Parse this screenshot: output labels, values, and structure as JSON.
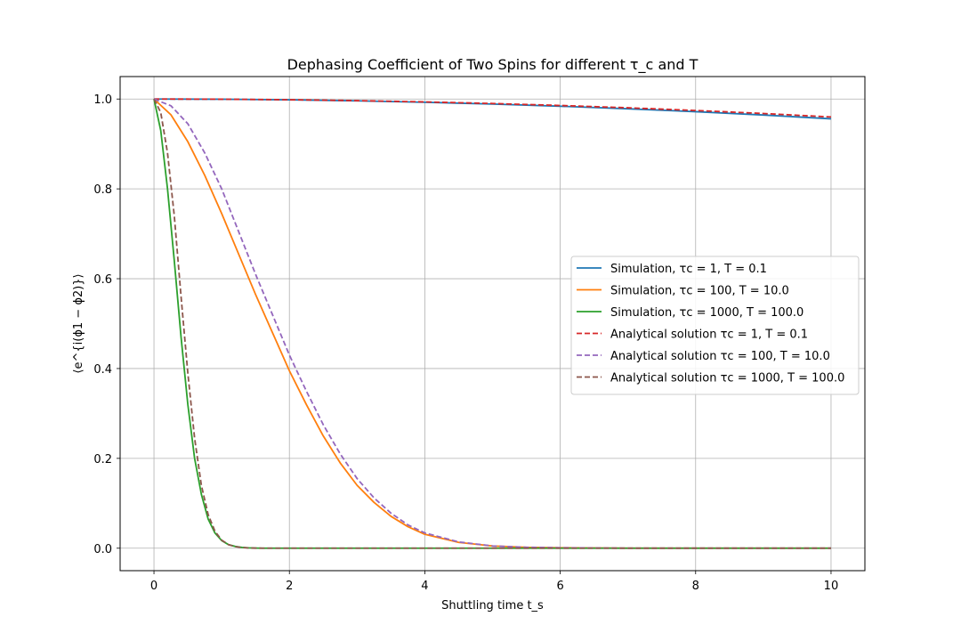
{
  "chart_data": {
    "type": "line",
    "title": "Dephasing Coefficient of Two Spins for different τ_c and T",
    "xlabel": "Shuttling time t_s",
    "ylabel": "⟨e^{i(ϕ1 − ϕ2)}⟩",
    "xlim": [
      -0.5,
      10.5
    ],
    "ylim": [
      -0.05,
      1.05
    ],
    "xticks": [
      0,
      2,
      4,
      6,
      8,
      10
    ],
    "yticks": [
      0.0,
      0.2,
      0.4,
      0.6,
      0.8,
      1.0
    ],
    "xtick_labels": [
      "0",
      "2",
      "4",
      "6",
      "8",
      "10"
    ],
    "ytick_labels": [
      "0.0",
      "0.2",
      "0.4",
      "0.6",
      "0.8",
      "1.0"
    ],
    "grid": true,
    "legend_position": "center-right",
    "series": [
      {
        "name": "Simulation, τc = 1, T = 0.1",
        "color": "#1f77b4",
        "style": "solid",
        "x": [
          0,
          1,
          2,
          3,
          4,
          5,
          6,
          7,
          8,
          9,
          10
        ],
        "y": [
          1.0,
          0.9996,
          0.9982,
          0.996,
          0.9928,
          0.9888,
          0.984,
          0.9783,
          0.9718,
          0.9644,
          0.956
        ]
      },
      {
        "name": "Simulation, τc = 100, T = 10.0",
        "color": "#ff7f0e",
        "style": "solid",
        "x": [
          0,
          0.25,
          0.5,
          0.75,
          1.0,
          1.25,
          1.5,
          1.75,
          2.0,
          2.25,
          2.5,
          2.75,
          3.0,
          3.25,
          3.5,
          3.75,
          4.0,
          4.5,
          5.0,
          5.5,
          6.0,
          7.0,
          8.0,
          9.0,
          10.0
        ],
        "y": [
          1.0,
          0.965,
          0.905,
          0.83,
          0.745,
          0.655,
          0.565,
          0.48,
          0.395,
          0.32,
          0.25,
          0.19,
          0.14,
          0.102,
          0.071,
          0.048,
          0.031,
          0.013,
          0.005,
          0.002,
          0.001,
          0.0,
          0.0,
          0.0,
          0.0
        ]
      },
      {
        "name": "Simulation, τc = 1000, T = 100.0",
        "color": "#2ca02c",
        "style": "solid",
        "x": [
          0,
          0.1,
          0.2,
          0.3,
          0.4,
          0.5,
          0.6,
          0.7,
          0.8,
          0.9,
          1.0,
          1.1,
          1.2,
          1.3,
          1.4,
          1.5,
          1.6,
          1.8,
          2.0,
          3.0,
          4.0,
          5.0,
          6.0,
          8.0,
          10.0
        ],
        "y": [
          1.0,
          0.93,
          0.8,
          0.64,
          0.47,
          0.32,
          0.2,
          0.12,
          0.065,
          0.034,
          0.017,
          0.008,
          0.004,
          0.0018,
          0.0008,
          0.0003,
          0.0001,
          0.0,
          0.0,
          0.0,
          0.0,
          0.0,
          0.0,
          0.0,
          0.0
        ]
      },
      {
        "name": "Analytical solution τc = 1, T = 0.1",
        "color": "#d62728",
        "style": "dashed",
        "x": [
          0,
          1,
          2,
          3,
          4,
          5,
          6,
          7,
          8,
          9,
          10
        ],
        "y": [
          1.0,
          0.9996,
          0.9984,
          0.9964,
          0.9936,
          0.99,
          0.9856,
          0.9805,
          0.9745,
          0.9678,
          0.96
        ]
      },
      {
        "name": "Analytical solution τc = 100, T = 10.0",
        "color": "#9467bd",
        "style": "dashed",
        "x": [
          0,
          0.25,
          0.5,
          0.75,
          1.0,
          1.25,
          1.5,
          1.75,
          2.0,
          2.25,
          2.5,
          2.75,
          3.0,
          3.25,
          3.5,
          3.75,
          4.0,
          4.5,
          5.0,
          5.5,
          6.0,
          7.0,
          8.0,
          9.0,
          10.0
        ],
        "y": [
          1.0,
          0.985,
          0.945,
          0.88,
          0.8,
          0.705,
          0.61,
          0.52,
          0.43,
          0.35,
          0.275,
          0.21,
          0.155,
          0.112,
          0.078,
          0.052,
          0.034,
          0.014,
          0.005,
          0.002,
          0.001,
          0.0,
          0.0,
          0.0,
          0.0
        ]
      },
      {
        "name": "Analytical solution τc = 1000, T = 100.0",
        "color": "#8c564b",
        "style": "dashed",
        "x": [
          0,
          0.1,
          0.2,
          0.3,
          0.4,
          0.5,
          0.6,
          0.7,
          0.8,
          0.9,
          1.0,
          1.1,
          1.2,
          1.3,
          1.4,
          1.5,
          1.6,
          1.8,
          2.0,
          3.0,
          4.0,
          5.0,
          6.0,
          8.0,
          10.0
        ],
        "y": [
          1.0,
          0.97,
          0.88,
          0.74,
          0.56,
          0.39,
          0.245,
          0.14,
          0.075,
          0.038,
          0.018,
          0.008,
          0.0035,
          0.0014,
          0.0005,
          0.0002,
          0.0001,
          0.0,
          0.0,
          0.0,
          0.0,
          0.0,
          0.0,
          0.0,
          0.0
        ]
      }
    ]
  }
}
